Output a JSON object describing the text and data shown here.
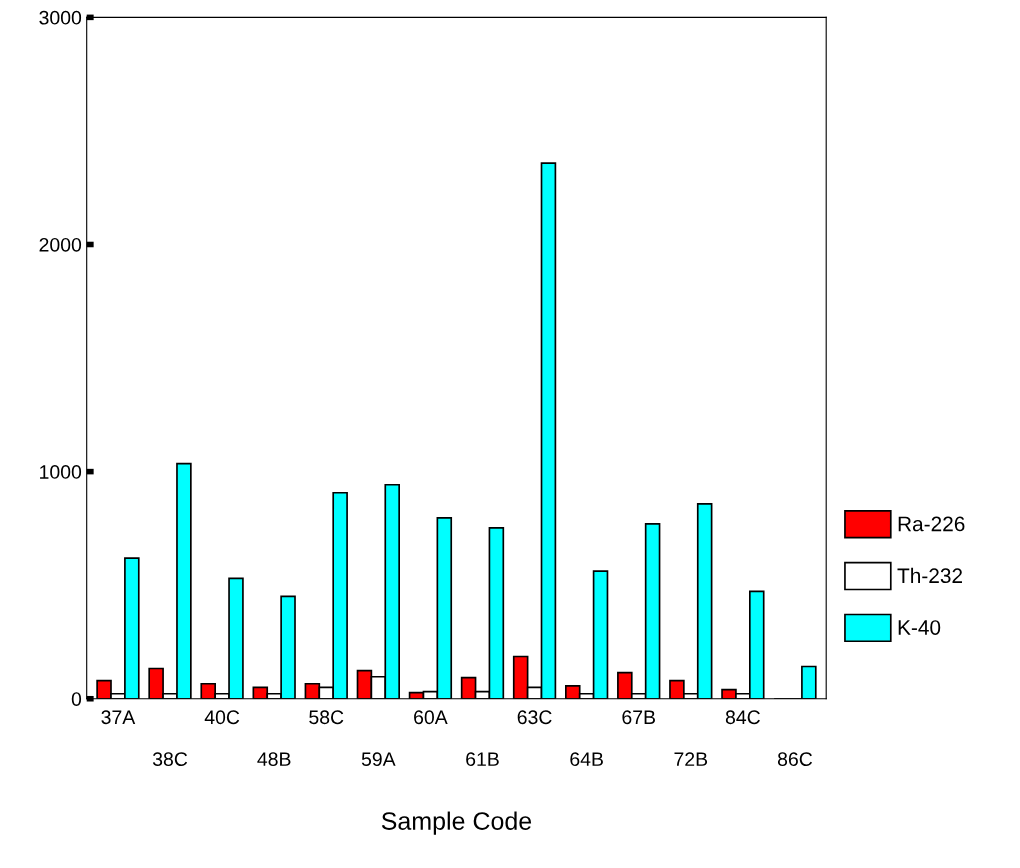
{
  "chart_data": {
    "type": "bar",
    "xlabel": "Sample Code",
    "categories": [
      "37A",
      "38C",
      "40C",
      "48B",
      "58C",
      "59A",
      "60A",
      "61B",
      "63C",
      "64B",
      "67B",
      "72B",
      "84C",
      "86C"
    ],
    "series": [
      {
        "name": "Ra-226",
        "color": "#ff0000",
        "values": [
          80,
          133,
          66,
          50,
          66,
          124,
          27,
          93,
          186,
          57,
          115,
          80,
          40,
          null
        ]
      },
      {
        "name": "Th-232",
        "color": "#ffffff",
        "values": [
          22,
          22,
          22,
          22,
          50,
          97,
          31,
          31,
          50,
          22,
          22,
          22,
          22,
          null
        ]
      },
      {
        "name": "K-40",
        "color": "#00ffff",
        "values": [
          619,
          1035,
          530,
          451,
          907,
          942,
          796,
          752,
          2358,
          562,
          770,
          858,
          473,
          142
        ]
      }
    ],
    "ylim": [
      0,
      3000
    ],
    "yticks": [
      0,
      1000,
      2000,
      3000
    ],
    "grid": false,
    "legend": "right"
  }
}
